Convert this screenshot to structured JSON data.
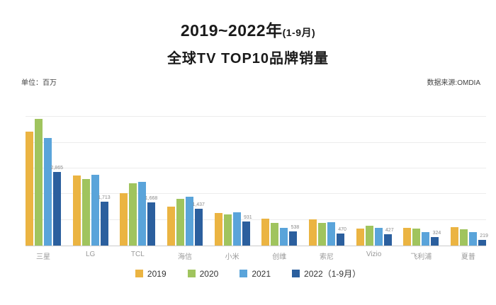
{
  "title": {
    "line1_main": "2019~2022年",
    "line1_sub": "(1-9月)",
    "line2": "全球TV TOP10品牌销量"
  },
  "meta": {
    "unit_label": "单位：百万",
    "source_label": "数据来源:OMDIA"
  },
  "colors": {
    "y2019": "#EBB442",
    "y2020": "#A0C45E",
    "y2021": "#5AA4DA",
    "y2022": "#2B5F9E",
    "gridline": "#ececec",
    "axis_line": "#cccccc"
  },
  "chart_data": {
    "type": "bar",
    "title": "2019~2022年(1-9月) 全球TV TOP10品牌销量",
    "unit": "百万",
    "source": "OMDIA",
    "categories": [
      "三星",
      "LG",
      "TCL",
      "海信",
      "小米",
      "创维",
      "索尼",
      "Vizio",
      "飞利浦",
      "夏普"
    ],
    "series": [
      {
        "name": "2019",
        "color": "#EBB442",
        "values": [
          4433,
          2730,
          2040,
          1520,
          1265,
          1045,
          1015,
          665,
          695,
          715
        ]
      },
      {
        "name": "2020",
        "color": "#A0C45E",
        "values": [
          4937,
          2600,
          2420,
          1830,
          1210,
          885,
          885,
          780,
          665,
          620
        ]
      },
      {
        "name": "2021",
        "color": "#5AA4DA",
        "values": [
          4187,
          2760,
          2470,
          1905,
          1285,
          695,
          920,
          685,
          520,
          520
        ]
      },
      {
        "name": "2022（1-9月）",
        "color": "#2B5F9E",
        "values": [
          2865,
          1713,
          1668,
          1437,
          931,
          538,
          470,
          427,
          324,
          219
        ],
        "show_labels": true,
        "labels": [
          "2,865",
          "1,713",
          "1,668",
          "1,437",
          "931",
          "538",
          "470",
          "427",
          "324",
          "219"
        ]
      }
    ],
    "ylim": [
      0,
      5700
    ],
    "gridline_step": 1000,
    "grid": true,
    "legend_position": "bottom",
    "xlabel": "",
    "ylabel": ""
  }
}
